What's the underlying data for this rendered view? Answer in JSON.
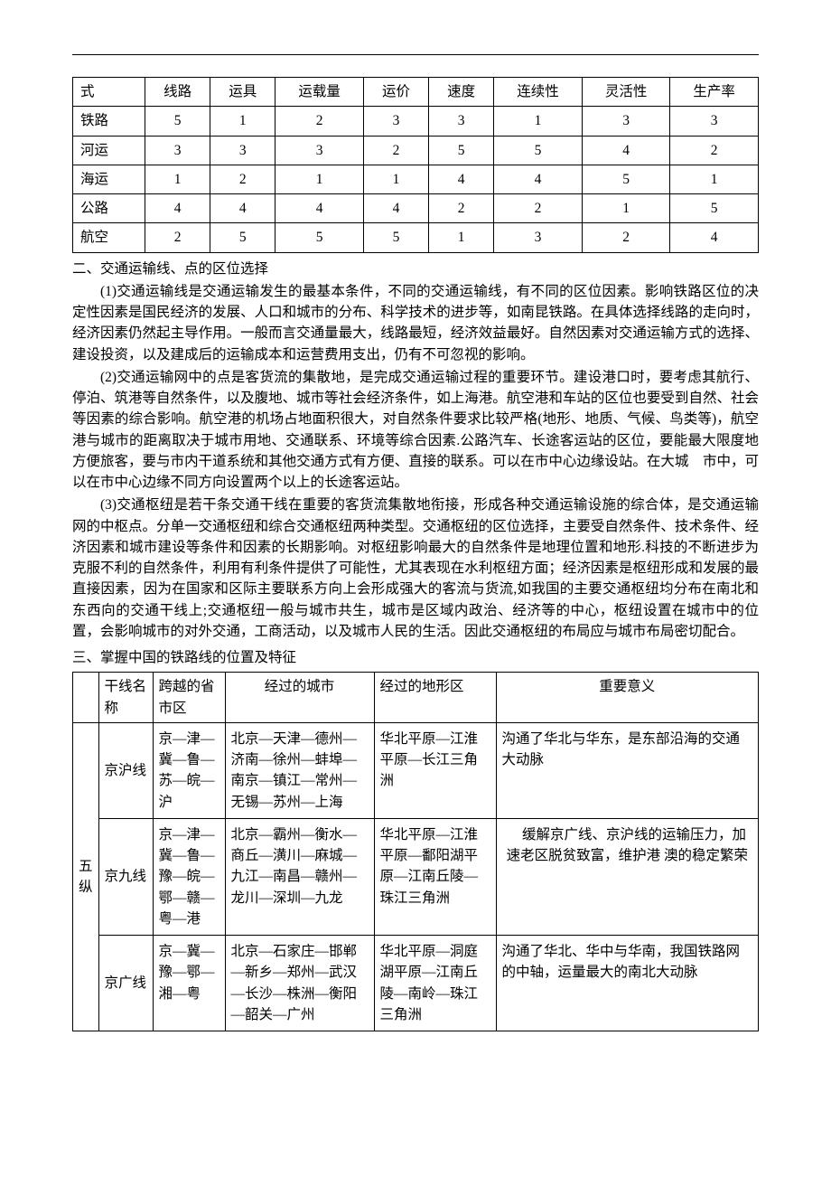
{
  "table1": {
    "headers": [
      "式",
      "线路",
      "运具",
      "运载量",
      "运价",
      "速度",
      "连续性",
      "灵活性",
      "生产率"
    ],
    "rows": [
      [
        "铁路",
        "5",
        "1",
        "2",
        "3",
        "3",
        "1",
        "3",
        "3"
      ],
      [
        "河运",
        "3",
        "3",
        "3",
        "2",
        "5",
        "5",
        "4",
        "2"
      ],
      [
        "海运",
        "1",
        "2",
        "1",
        "1",
        "4",
        "4",
        "5",
        "1"
      ],
      [
        "公路",
        "4",
        "4",
        "4",
        "4",
        "2",
        "2",
        "1",
        "5"
      ],
      [
        "航空",
        "2",
        "5",
        "5",
        "5",
        "1",
        "3",
        "2",
        "4"
      ]
    ]
  },
  "section2_title": "二、交通运输线、点的区位选择",
  "p1": "(1)交通运输线是交通运输发生的最基本条件，不同的交通运输线，有不同的区位因素。影响铁路区位的决定性因素是国民经济的发展、人口和城市的分布、科学技术的进步等，如南昆铁路。在具体选择线路的走向时，经济因素仍然起主导作用。一般而言交通量最大，线路最短，经济效益最好。自然因素对交通运输方式的选择、建设投资，以及建成后的运输成本和运营费用支出，仍有不可忽视的影响。",
  "p2": "(2)交通运输网中的点是客货流的集散地，是完成交通运输过程的重要环节。建设港口时，要考虑其航行、停泊、筑港等自然条件，以及腹地、城市等社会经济条件，如上海港。航空港和车站的区位也要受到自然、社会等因素的综合影响。航空港的机场占地面积很大，对自然条件要求比较严格(地形、地质、气候、鸟类等)，航空港与城市的距离取决于城市用地、交通联系、环境等综合因素.公路汽车、长途客运站的区位，要能最大限度地方便旅客，要与市内干道系统和其他交通方式有方便、直接的联系。可以在市中心边缘设站。在大城　市中，可以在市中心边缘不同方向设置两个以上的长途客运站。",
  "p3": "(3)交通枢纽是若干条交通干线在重要的客货流集散地衔接，形成各种交通运输设施的综合体，是交通运输网的中枢点。分单一交通枢纽和综合交通枢纽两种类型。交通枢纽的区位选择，主要受自然条件、技术条件、经济因素和城市建设等条件和因素的长期影响。对枢纽影响最大的自然条件是地理位置和地形.科技的不断进步为克服不利的自然条件，利用有利条件提供了可能性，尤其表现在水利枢纽方面；经济因素是枢纽形成和发展的最直接因素，因为在国家和区际主要联系方向上会形成强大的客流与货流,如我国的主要交通枢纽均分布在南北和东西向的交通干线上;交通枢纽一般与城市共生，城市是区域内政治、经济等的中心，枢纽设置在城市中的位置，会影响城市的对外交通，工商活动，以及城市人民的生活。因此交通枢纽的布局应与城市布局密切配合。",
  "section3_title": "三、掌握中国的铁路线的位置及特征",
  "table2": {
    "headers": [
      "干线名称",
      "跨越的省市区",
      "经过的城市",
      "经过的地形区",
      "重要意义"
    ],
    "group_label": "五纵",
    "rows": [
      {
        "name": "京沪线",
        "provinces": "京—津—冀—鲁—苏—皖—沪",
        "cities": "北京—天津—德州—济南—徐州—蚌埠—南京—镇江—常州—无锡—苏州—上海",
        "terrain": "华北平原—江淮平原—长江三角洲",
        "significance": "沟通了华北与华东，是东部沿海的交通大动脉"
      },
      {
        "name": "京九线",
        "provinces": "京—津—冀—鲁—豫—皖—鄂—赣—粤—港",
        "cities": "北京—霸州—衡水—商丘—潢川—麻城—九江—南昌—赣州—龙川—深圳—九龙",
        "terrain": "华北平原—江淮平原—鄱阳湖平原—江南丘陵—珠江三角洲",
        "significance": "　缓解京广线、京沪线的运输压力，加速老区脱贫致富，维护港\n澳的稳定繁荣"
      },
      {
        "name": "京广线",
        "provinces": "京—冀—豫—鄂—湘—粤",
        "cities": "北京—石家庄—邯郸—新乡—郑州—武汉—长沙—株洲—衡阳—韶关—广州",
        "terrain": "华北平原—洞庭湖平原—江南丘陵—南岭—珠江三角洲",
        "significance": "沟通了华北、华中与华南，我国铁路网的中轴，运量最大的南北大动脉"
      }
    ]
  }
}
